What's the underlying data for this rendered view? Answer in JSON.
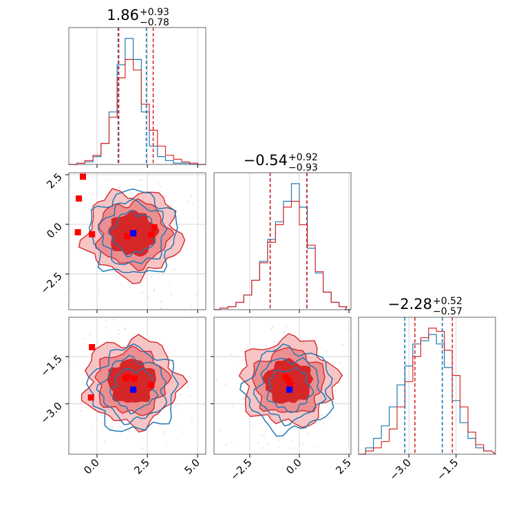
{
  "colors": {
    "blue": "#1f77b4",
    "red": "#d62728",
    "marker_red": "#ff0000",
    "marker_blue": "#0000ff",
    "grid": "#cccccc"
  },
  "chart_data": {
    "type": "corner",
    "grid": true,
    "parameters": [
      {
        "median": 1.86,
        "title": {
          "main": "1.86",
          "sup": "+0.93",
          "sub": "−0.78"
        },
        "range": [
          -1.4,
          5.4
        ],
        "ticks": [
          0.0,
          2.5,
          5.0
        ],
        "tick_labels": [
          "0.0",
          "2.5",
          "5.0"
        ],
        "quantiles": {
          "blue": [
            1.05,
            2.45
          ],
          "red": [
            1.08,
            2.79
          ]
        }
      },
      {
        "median": -0.54,
        "title": {
          "main": "−0.54",
          "sup": "+0.92",
          "sub": "−0.93"
        },
        "range": [
          -4.3,
          2.6
        ],
        "ticks": [
          -2.5,
          0.0,
          2.5
        ],
        "tick_labels": [
          "−2.5",
          "0.0",
          "2.5"
        ],
        "quantiles": {
          "blue": [
            -1.47,
            0.38
          ],
          "red": [
            -1.47,
            0.38
          ]
        }
      },
      {
        "median": -2.28,
        "title": {
          "main": "−2.28",
          "sup": "+0.52",
          "sub": "−0.57"
        },
        "range": [
          -4.6,
          -0.25
        ],
        "ticks": [
          -3.0,
          -1.5
        ],
        "tick_labels": [
          "−3.0",
          "−1.5"
        ],
        "quantiles": {
          "blue": [
            -3.13,
            -1.94
          ],
          "red": [
            -2.81,
            -1.62
          ]
        }
      }
    ],
    "diagonal_histograms": [
      {
        "x": [
          -1.2,
          -0.8,
          -0.4,
          0.0,
          0.4,
          0.8,
          1.2,
          1.6,
          2.0,
          2.4,
          2.8,
          3.2,
          3.6,
          4.0,
          4.4,
          4.8,
          5.2
        ],
        "blue": [
          0.0,
          0.01,
          0.02,
          0.06,
          0.16,
          0.4,
          0.76,
          0.96,
          0.8,
          0.4,
          0.14,
          0.06,
          0.03,
          0.01,
          0.01,
          0.0,
          0.0
        ],
        "red": [
          0.0,
          0.01,
          0.03,
          0.07,
          0.16,
          0.36,
          0.66,
          0.8,
          0.72,
          0.46,
          0.26,
          0.14,
          0.07,
          0.04,
          0.02,
          0.01,
          0.0
        ]
      },
      {
        "x": [
          -4.2,
          -3.8,
          -3.4,
          -3.0,
          -2.6,
          -2.2,
          -1.8,
          -1.4,
          -1.0,
          -0.6,
          -0.2,
          0.2,
          0.6,
          1.0,
          1.4,
          1.8,
          2.2,
          2.5
        ],
        "blue": [
          0.0,
          0.01,
          0.02,
          0.05,
          0.1,
          0.2,
          0.33,
          0.48,
          0.6,
          0.74,
          0.86,
          0.7,
          0.42,
          0.25,
          0.12,
          0.05,
          0.02,
          0.0
        ],
        "red": [
          0.0,
          0.01,
          0.02,
          0.05,
          0.1,
          0.2,
          0.32,
          0.46,
          0.58,
          0.7,
          0.74,
          0.58,
          0.44,
          0.26,
          0.12,
          0.05,
          0.02,
          0.0
        ]
      },
      {
        "x": [
          -4.5,
          -4.25,
          -4.0,
          -3.75,
          -3.5,
          -3.25,
          -3.0,
          -2.75,
          -2.5,
          -2.25,
          -2.0,
          -1.75,
          -1.5,
          -1.25,
          -1.0,
          -0.75,
          -0.5
        ],
        "blue": [
          0.0,
          0.04,
          0.1,
          0.18,
          0.3,
          0.44,
          0.56,
          0.7,
          0.72,
          0.76,
          0.7,
          0.55,
          0.34,
          0.2,
          0.1,
          0.04,
          0.02
        ],
        "red": [
          0.0,
          0.02,
          0.04,
          0.08,
          0.16,
          0.3,
          0.46,
          0.62,
          0.74,
          0.8,
          0.78,
          0.66,
          0.5,
          0.3,
          0.14,
          0.06,
          0.02
        ]
      }
    ],
    "contour_panels": [
      {
        "row": 1,
        "col": 0,
        "blue_center": [
          1.8,
          -0.45
        ],
        "red_center": [
          1.78,
          -0.48
        ],
        "blue_markers": [
          [
            1.8,
            -0.45
          ]
        ],
        "red_markers": [
          [
            -0.7,
            2.4
          ],
          [
            -0.9,
            1.3
          ],
          [
            -0.95,
            -0.4
          ],
          [
            -0.25,
            -0.5
          ],
          [
            1.5,
            -0.6
          ],
          [
            2.7,
            -0.5
          ],
          [
            2.85,
            -0.15
          ]
        ]
      },
      {
        "row": 2,
        "col": 0,
        "blue_center": [
          1.82,
          -2.55
        ],
        "red_center": [
          1.72,
          -2.3
        ],
        "blue_markers": [
          [
            1.8,
            -2.55
          ]
        ],
        "red_markers": [
          [
            -0.25,
            -1.2
          ],
          [
            -0.3,
            -2.8
          ],
          [
            1.5,
            -2.15
          ],
          [
            1.85,
            -2.2
          ],
          [
            2.7,
            -2.4
          ],
          [
            1.4,
            -2.2
          ]
        ]
      },
      {
        "row": 2,
        "col": 1,
        "blue_center": [
          -0.5,
          -2.55
        ],
        "red_center": [
          -0.55,
          -2.3
        ],
        "blue_markers": [
          [
            -0.5,
            -2.55
          ]
        ],
        "red_markers": [
          [
            -0.7,
            -2.15
          ],
          [
            -0.55,
            -2.25
          ],
          [
            -0.45,
            -2.4
          ]
        ]
      }
    ]
  }
}
